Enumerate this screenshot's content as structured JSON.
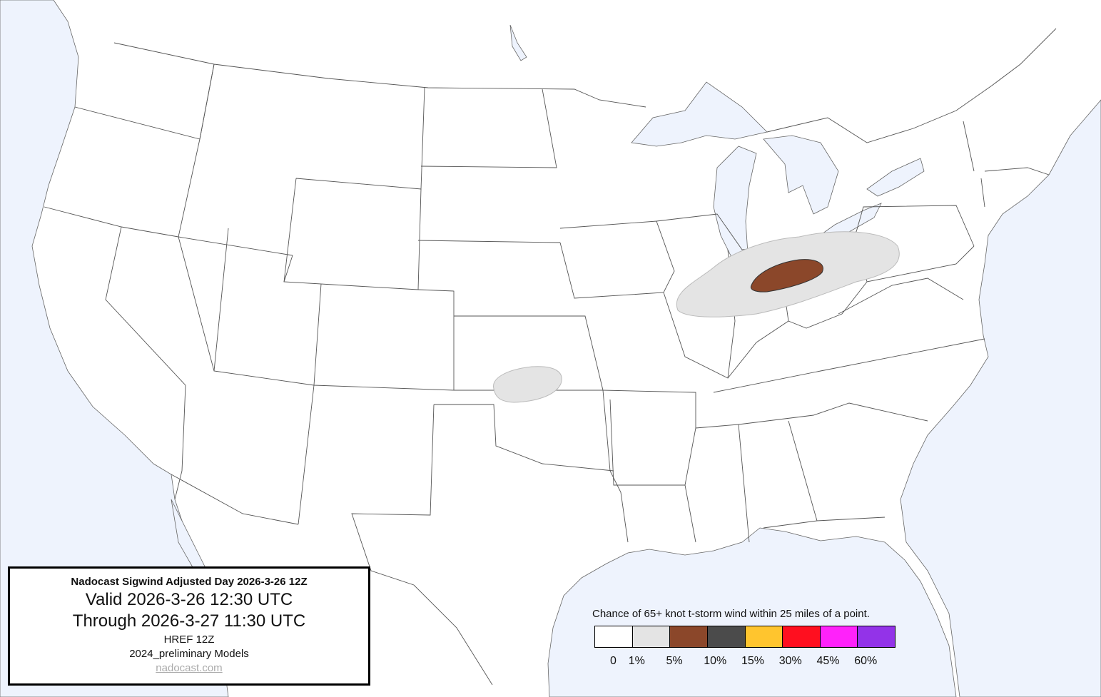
{
  "info": {
    "title": "Nadocast Sigwind Adjusted Day 2026-3-26 12Z",
    "valid": "Valid 2026-3-26 12:30 UTC",
    "through": "Through 2026-3-27 11:30 UTC",
    "model_run": "HREF 12Z",
    "models": "2024_preliminary Models",
    "link": "nadocast.com"
  },
  "legend": {
    "caption": "Chance of 65+ knot t-storm wind within 25 miles of a point.",
    "items": [
      {
        "label": "0",
        "color": "#ffffff"
      },
      {
        "label": "1%",
        "color": "#e4e4e4"
      },
      {
        "label": "5%",
        "color": "#8b472a"
      },
      {
        "label": "10%",
        "color": "#4b4b4b"
      },
      {
        "label": "15%",
        "color": "#ffc52e"
      },
      {
        "label": "30%",
        "color": "#ff0f1f"
      },
      {
        "label": "45%",
        "color": "#ff22fa"
      },
      {
        "label": "60%",
        "color": "#9333e8"
      }
    ]
  },
  "colors": {
    "water": "#eef3fd",
    "land": "#ffffff",
    "borders": "#555555"
  }
}
